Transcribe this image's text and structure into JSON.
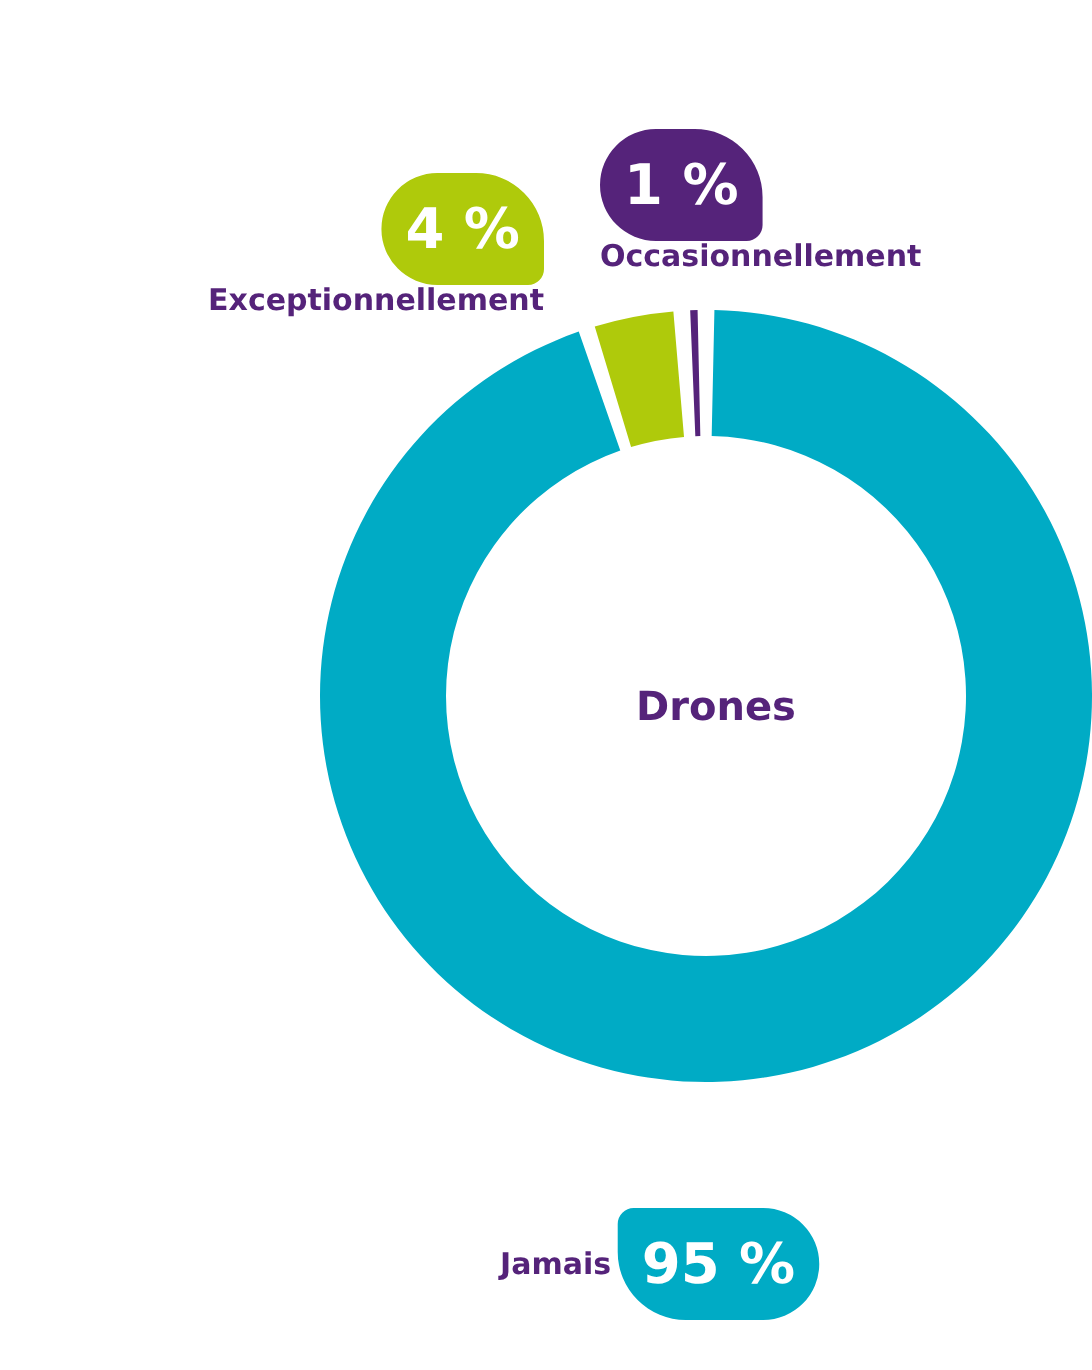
{
  "chart_data": {
    "type": "donut",
    "title": "Drones",
    "categories": [
      "Jamais",
      "Exceptionnellement",
      "Occasionnellement"
    ],
    "values": [
      95,
      4,
      1
    ],
    "colors": [
      "#00abc5",
      "#afca0b",
      "#55237a"
    ],
    "value_labels": [
      "95 %",
      "4 %",
      "1 %"
    ]
  }
}
